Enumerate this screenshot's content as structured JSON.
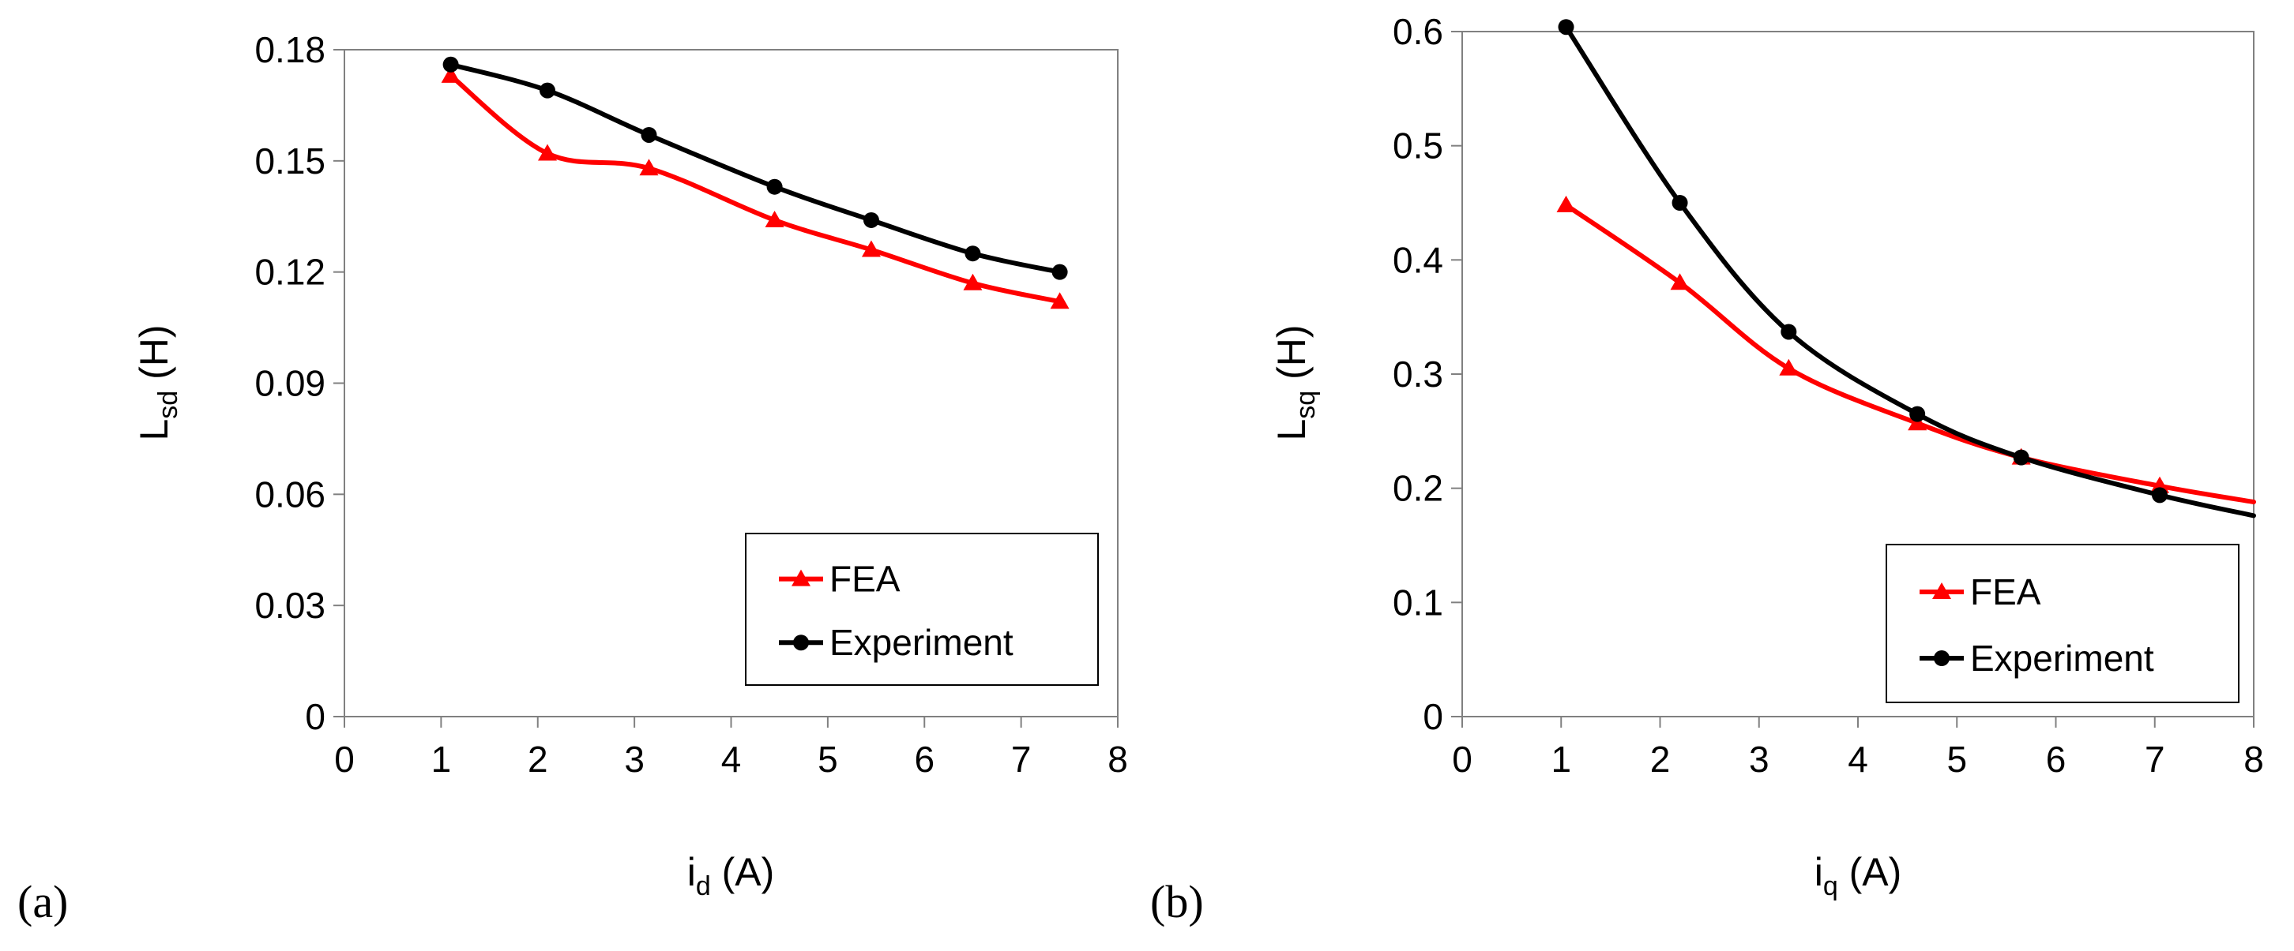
{
  "chart_data": [
    {
      "type": "line",
      "panel_label": "(a)",
      "xlabel": {
        "main": "i",
        "sub": "d",
        "unit": " (A)"
      },
      "ylabel": {
        "main": "L",
        "sub": "sd",
        "unit": " (H)"
      },
      "xlim": [
        0,
        8
      ],
      "ylim": [
        0,
        0.18
      ],
      "xticks": [
        "0",
        "1",
        "2",
        "3",
        "4",
        "5",
        "6",
        "7",
        "8"
      ],
      "yticks": [
        "0",
        "0.03",
        "0.06",
        "0.09",
        "0.12",
        "0.15",
        "0.18"
      ],
      "legend": [
        "FEA",
        "Experiment"
      ],
      "legend_position": "bottom-right",
      "series": [
        {
          "name": "FEA",
          "color": "#ff0000",
          "marker": "triangle",
          "x": [
            1.1,
            2.1,
            3.15,
            4.45,
            5.45,
            6.5,
            7.4
          ],
          "y": [
            0.173,
            0.152,
            0.148,
            0.134,
            0.126,
            0.117,
            0.112
          ]
        },
        {
          "name": "Experiment",
          "color": "#000000",
          "marker": "circle",
          "x": [
            1.1,
            2.1,
            3.15,
            4.45,
            5.45,
            6.5,
            7.4
          ],
          "y": [
            0.176,
            0.169,
            0.157,
            0.143,
            0.134,
            0.125,
            0.12
          ]
        }
      ]
    },
    {
      "type": "line",
      "panel_label": "(b)",
      "xlabel": {
        "main": "i",
        "sub": "q",
        "unit": " (A)"
      },
      "ylabel": {
        "main": "L",
        "sub": "sq",
        "unit": " (H)"
      },
      "xlim": [
        0,
        8
      ],
      "ylim": [
        0,
        0.6
      ],
      "xticks": [
        "0",
        "1",
        "2",
        "3",
        "4",
        "5",
        "6",
        "7",
        "8"
      ],
      "yticks": [
        "0",
        "0.1",
        "0.2",
        "0.3",
        "0.4",
        "0.5",
        "0.6"
      ],
      "legend": [
        "FEA",
        "Experiment"
      ],
      "legend_position": "bottom-right",
      "series": [
        {
          "name": "FEA",
          "color": "#ff0000",
          "marker": "triangle",
          "x": [
            1.05,
            2.2,
            3.3,
            4.6,
            5.65,
            7.05,
            8.0
          ],
          "y": [
            0.448,
            0.38,
            0.305,
            0.257,
            0.227,
            0.202,
            0.188
          ],
          "marked": 6
        },
        {
          "name": "Experiment",
          "color": "#000000",
          "marker": "circle",
          "x": [
            1.05,
            2.2,
            3.3,
            4.6,
            5.65,
            7.05,
            8.0
          ],
          "y": [
            0.604,
            0.45,
            0.337,
            0.265,
            0.227,
            0.194,
            0.176
          ],
          "marked": 6
        }
      ]
    }
  ]
}
